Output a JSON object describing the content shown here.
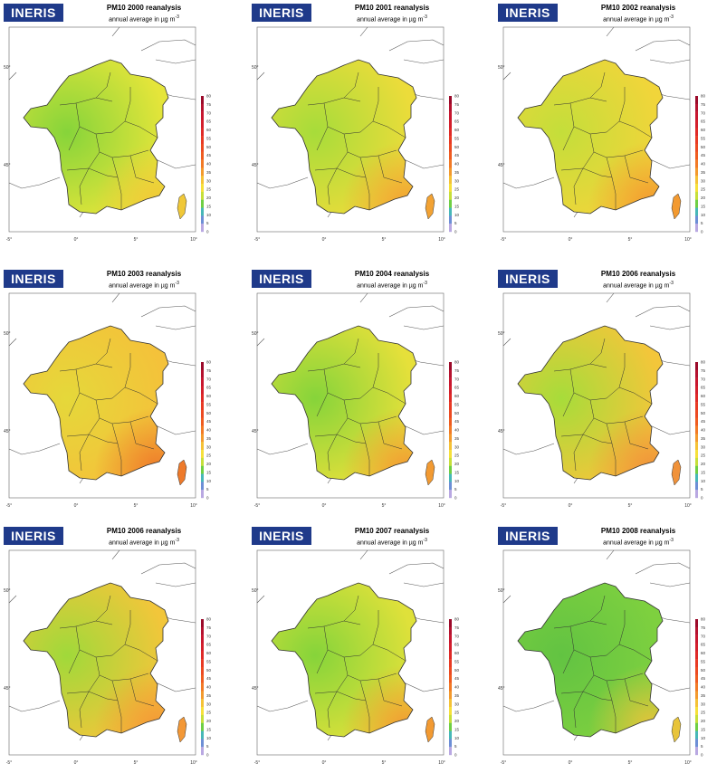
{
  "logo_text": "INERIS",
  "subtitle": "annual average in µg m",
  "subtitle_sup": "-3",
  "lat_labels": [
    "50°",
    "45°"
  ],
  "lon_labels": [
    "-5°",
    "0°",
    "5°",
    "10°"
  ],
  "colorbar_ticks": [
    "80",
    "75",
    "70",
    "65",
    "60",
    "55",
    "50",
    "45",
    "40",
    "35",
    "30",
    "25",
    "20",
    "15",
    "10",
    "5",
    "0"
  ],
  "colors": {
    "logo_bg": "#1f3a8a",
    "green": "#7fd13b",
    "yellow": "#f5e23a",
    "orange": "#f5a030"
  },
  "panels": [
    {
      "title": "PM10 2000 reanalysis",
      "base": "#e5e53a",
      "west": "#86d43a",
      "southeast": "#f0c838"
    },
    {
      "title": "PM10 2001 reanalysis",
      "base": "#ecdc3a",
      "west": "#a7dc3a",
      "southeast": "#f2a233"
    },
    {
      "title": "PM10 2002 reanalysis",
      "base": "#f1d53a",
      "west": "#c4de3a",
      "southeast": "#f39a30"
    },
    {
      "title": "PM10 2003 reanalysis",
      "base": "#f4c23a",
      "west": "#e5d83a",
      "southeast": "#ee7a2a"
    },
    {
      "title": "PM10 2004 reanalysis",
      "base": "#e6e03a",
      "west": "#86d43a",
      "southeast": "#f29a32"
    },
    {
      "title": "PM10 2006 reanalysis",
      "base": "#f3c63a",
      "west": "#a7dc3a",
      "southeast": "#f0923a"
    },
    {
      "title": "PM10 2006 reanalysis",
      "base": "#f2c63a",
      "west": "#a0d93a",
      "southeast": "#f39836"
    },
    {
      "title": "PM10 2007 reanalysis",
      "base": "#dfe13a",
      "west": "#86d43a",
      "southeast": "#f29a32"
    },
    {
      "title": "PM10 2008 reanalysis",
      "base": "#7ed03f",
      "west": "#62c342",
      "southeast": "#e8c43a"
    }
  ]
}
